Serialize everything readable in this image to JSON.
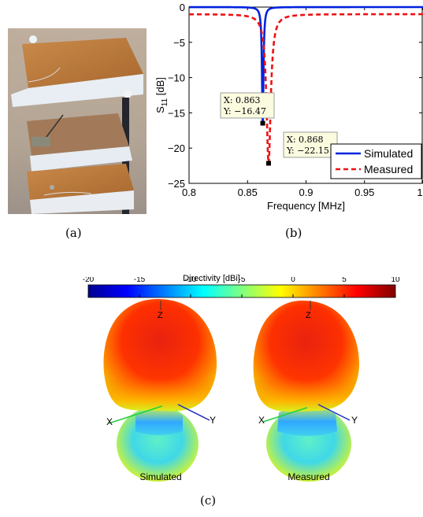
{
  "captions": {
    "a": "(a)",
    "b": "(b)",
    "c": "(c)"
  },
  "photo": {
    "description_icon": "antenna-prototype-photo"
  },
  "chart_data": {
    "type": "line",
    "xlabel": "Frequency [MHz]",
    "ylabel_main": "S",
    "ylabel_sub": "11",
    "ylabel_unit": " [dB]",
    "xlim": [
      0.8,
      1.0
    ],
    "ylim": [
      -25,
      0
    ],
    "xticks": [
      0.8,
      0.85,
      0.9,
      0.95,
      1.0
    ],
    "xtick_labels": [
      "0.8",
      "0.85",
      "0.9",
      "0.95",
      "1"
    ],
    "yticks": [
      0,
      -5,
      -10,
      -15,
      -20,
      -25
    ],
    "ytick_labels": [
      "0",
      "−5",
      "−10",
      "−15",
      "−20",
      "−25"
    ],
    "grid": false,
    "legend_placement": "bottom-right",
    "series": [
      {
        "name": "Simulated",
        "color": "#0022dd",
        "style": "solid",
        "f0": 0.863,
        "min": -16.47,
        "floor": 0.0,
        "width": 0.00075
      },
      {
        "name": "Measured",
        "color": "#ee1111",
        "style": "dashed",
        "f0": 0.868,
        "min": -22.15,
        "floor": -1.0,
        "width": 0.0022
      }
    ],
    "datatips": [
      {
        "x": 0.863,
        "y": -16.47,
        "line_x": "X: 0.863",
        "line_y": "Y: −16.47"
      },
      {
        "x": 0.868,
        "y": -22.15,
        "line_x": "X: 0.868",
        "line_y": "Y: −22.15"
      }
    ]
  },
  "directivity": {
    "title": "Directivity [dBi]",
    "tick_labels": [
      "-20",
      "-15",
      "-10",
      "-5",
      "0",
      "5",
      "10"
    ],
    "range": [
      -20,
      10
    ],
    "patterns": [
      {
        "label": "Simulated",
        "axes": {
          "z": "Z",
          "x": "X",
          "y": "Y"
        }
      },
      {
        "label": "Measured",
        "axes": {
          "z": "Z",
          "x": "X",
          "y": "Y"
        }
      }
    ]
  }
}
